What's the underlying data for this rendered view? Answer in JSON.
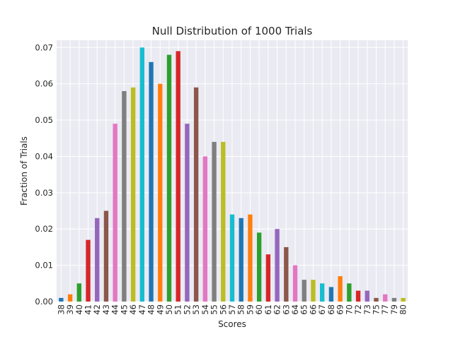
{
  "chart_data": {
    "type": "bar",
    "title": "Null Distribution of 1000 Trials",
    "xlabel": "Scores",
    "ylabel": "Fraction of Trials",
    "ylim": [
      0,
      0.072
    ],
    "yticks": [
      "0.00",
      "0.01",
      "0.02",
      "0.03",
      "0.04",
      "0.05",
      "0.06",
      "0.07"
    ],
    "grid": true,
    "background": "#EAEAF2",
    "categories": [
      "38",
      "39",
      "40",
      "41",
      "42",
      "43",
      "44",
      "45",
      "46",
      "47",
      "48",
      "49",
      "50",
      "51",
      "52",
      "53",
      "54",
      "55",
      "56",
      "57",
      "58",
      "59",
      "60",
      "61",
      "62",
      "63",
      "64",
      "65",
      "66",
      "67",
      "68",
      "69",
      "70",
      "72",
      "73",
      "75",
      "77",
      "79",
      "80"
    ],
    "values": [
      0.001,
      0.002,
      0.005,
      0.017,
      0.023,
      0.025,
      0.049,
      0.058,
      0.059,
      0.07,
      0.066,
      0.06,
      0.068,
      0.069,
      0.049,
      0.059,
      0.04,
      0.044,
      0.044,
      0.024,
      0.023,
      0.024,
      0.019,
      0.013,
      0.02,
      0.015,
      0.01,
      0.006,
      0.006,
      0.005,
      0.004,
      0.007,
      0.005,
      0.003,
      0.003,
      0.001,
      0.002,
      0.001,
      0.001
    ],
    "colors": [
      "#1f77b4",
      "#ff7f0e",
      "#2ca02c",
      "#d62728",
      "#9467bd",
      "#8c564b",
      "#e377c2",
      "#7f7f7f",
      "#bcbd22",
      "#17becf"
    ]
  }
}
